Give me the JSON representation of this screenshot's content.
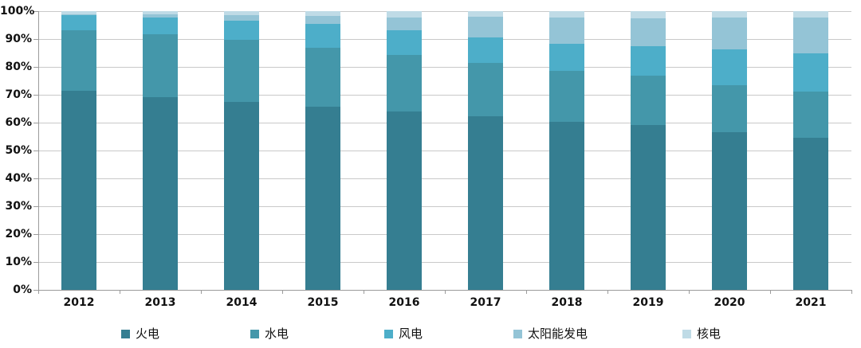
{
  "chart_data": {
    "type": "bar",
    "variant": "stacked-100-percent",
    "title": "",
    "xlabel": "",
    "ylabel": "",
    "ylim": [
      0,
      100
    ],
    "grid": true,
    "legend_position": "bottom",
    "y_tick_labels": [
      "0%",
      "10%",
      "20%",
      "30%",
      "40%",
      "50%",
      "60%",
      "70%",
      "80%",
      "90%",
      "100%"
    ],
    "categories": [
      "2012",
      "2013",
      "2014",
      "2015",
      "2016",
      "2017",
      "2018",
      "2019",
      "2020",
      "2021"
    ],
    "series": [
      {
        "name": "火电",
        "color": "#357E91",
        "values": [
          71.5,
          69.2,
          67.4,
          65.7,
          64.0,
          62.2,
          60.2,
          59.2,
          56.6,
          54.6
        ]
      },
      {
        "name": "水电",
        "color": "#4497AA",
        "values": [
          21.7,
          22.4,
          22.2,
          21.2,
          20.2,
          19.2,
          18.5,
          17.7,
          16.8,
          16.5
        ]
      },
      {
        "name": "风电",
        "color": "#4DAEC9",
        "values": [
          5.3,
          6.0,
          7.0,
          8.6,
          8.9,
          9.2,
          9.7,
          10.4,
          12.8,
          13.8
        ]
      },
      {
        "name": "太阳能发电",
        "color": "#94C4D6",
        "values": [
          0.3,
          1.3,
          1.9,
          2.8,
          4.7,
          7.3,
          9.2,
          10.2,
          11.5,
          12.9
        ]
      },
      {
        "name": "核电",
        "color": "#BFDBE6",
        "values": [
          1.2,
          1.1,
          1.5,
          1.7,
          2.2,
          2.1,
          2.4,
          2.5,
          2.3,
          2.2
        ]
      }
    ]
  },
  "colors": {
    "gridline": "#c9c9c9",
    "axis": "#9b9b9b",
    "text": "#111111",
    "background": "#ffffff"
  }
}
